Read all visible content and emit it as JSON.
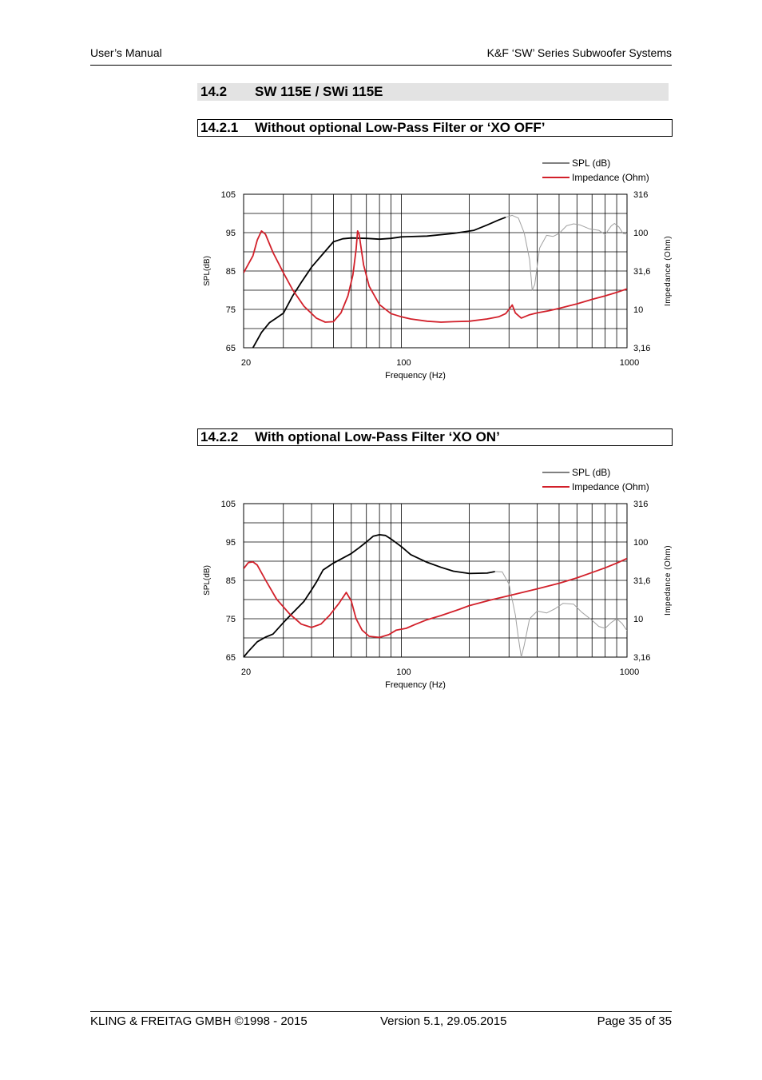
{
  "header": {
    "left": "User’s Manual",
    "right": "K&F ‘SW’ Series Subwoofer Systems"
  },
  "section": {
    "number": "14.2",
    "title": "SW 115E  / SWi 115E"
  },
  "subsections": [
    {
      "number": "14.2.1",
      "title": "Without optional Low-Pass Filter or ‘XO OFF’"
    },
    {
      "number": "14.2.2",
      "title": "With optional Low-Pass Filter ‘XO ON’"
    }
  ],
  "colors": {
    "spl": "#000000",
    "spl_extended": "#a0a0a0",
    "impedance": "#d2202a",
    "grid": "#000000"
  },
  "chart_data": [
    {
      "type": "line",
      "xscale": "log",
      "xlim": [
        20,
        1000
      ],
      "x_ticks": [
        "20",
        "100",
        "1000"
      ],
      "xlabel": "Frequency (Hz)",
      "ylabel": "SPL(dB)",
      "ylim": [
        65,
        105
      ],
      "y_ticks": [
        "105",
        "95",
        "85",
        "75",
        "65"
      ],
      "y2label": "Impedance (Ohm)",
      "y2scale": "log",
      "y2lim": [
        3.16,
        316
      ],
      "y2_ticks": [
        "316",
        "100",
        "31,6",
        "10",
        "3,16"
      ],
      "legend": {
        "placement": "top-right",
        "entries": [
          "SPL (dB)",
          "Impedance (Ohm)"
        ]
      },
      "series": [
        {
          "name": "SPL (dB)",
          "color": "#000000",
          "points": [
            [
              22,
              65
            ],
            [
              24,
              69
            ],
            [
              26,
              71.5
            ],
            [
              28,
              72.8
            ],
            [
              30,
              74
            ],
            [
              33,
              78.5
            ],
            [
              36,
              82
            ],
            [
              40,
              86
            ],
            [
              45,
              89.5
            ],
            [
              50,
              92.6
            ],
            [
              55,
              93.4
            ],
            [
              60,
              93.6
            ],
            [
              70,
              93.5
            ],
            [
              80,
              93.3
            ],
            [
              90,
              93.5
            ],
            [
              100,
              93.9
            ],
            [
              130,
              94.1
            ],
            [
              170,
              94.8
            ],
            [
              210,
              95.6
            ],
            [
              240,
              97
            ],
            [
              270,
              98.3
            ],
            [
              290,
              99
            ]
          ]
        },
        {
          "name": "SPL (dB) extended",
          "color": "#a0a0a0",
          "points": [
            [
              290,
              99
            ],
            [
              310,
              99.5
            ],
            [
              330,
              98.8
            ],
            [
              350,
              95
            ],
            [
              370,
              88
            ],
            [
              380,
              80
            ],
            [
              390,
              81.5
            ],
            [
              410,
              91
            ],
            [
              440,
              94.3
            ],
            [
              470,
              94
            ],
            [
              500,
              94.8
            ],
            [
              540,
              96.8
            ],
            [
              580,
              97.3
            ],
            [
              620,
              97
            ],
            [
              680,
              96
            ],
            [
              750,
              95.6
            ],
            [
              800,
              94.5
            ],
            [
              850,
              96.7
            ],
            [
              880,
              97.4
            ],
            [
              920,
              96.5
            ],
            [
              960,
              94.8
            ],
            [
              1000,
              94.6
            ]
          ]
        },
        {
          "name": "Impedance (Ohm)",
          "color": "#d2202a",
          "points": [
            [
              20,
              30
            ],
            [
              22,
              50
            ],
            [
              23,
              80
            ],
            [
              24,
              105
            ],
            [
              25,
              95
            ],
            [
              27,
              55
            ],
            [
              30,
              30
            ],
            [
              33,
              18
            ],
            [
              37,
              11
            ],
            [
              42,
              7.7
            ],
            [
              46,
              6.8
            ],
            [
              50,
              6.9
            ],
            [
              54,
              9
            ],
            [
              58,
              15
            ],
            [
              61,
              28
            ],
            [
              63,
              60
            ],
            [
              64,
              105
            ],
            [
              65,
              95
            ],
            [
              68,
              38
            ],
            [
              72,
              20
            ],
            [
              80,
              11.5
            ],
            [
              90,
              8.8
            ],
            [
              100,
              8
            ],
            [
              110,
              7.5
            ],
            [
              130,
              7
            ],
            [
              150,
              6.8
            ],
            [
              170,
              6.9
            ],
            [
              200,
              7
            ],
            [
              240,
              7.5
            ],
            [
              270,
              8
            ],
            [
              290,
              8.8
            ],
            [
              300,
              10
            ],
            [
              310,
              11.4
            ],
            [
              320,
              9
            ],
            [
              340,
              7.7
            ],
            [
              370,
              8.5
            ],
            [
              400,
              9
            ],
            [
              450,
              9.6
            ],
            [
              500,
              10.3
            ],
            [
              600,
              11.8
            ],
            [
              700,
              13.5
            ],
            [
              800,
              15
            ],
            [
              900,
              16.6
            ],
            [
              1000,
              18.5
            ]
          ]
        }
      ]
    },
    {
      "type": "line",
      "xscale": "log",
      "xlim": [
        20,
        1000
      ],
      "x_ticks": [
        "20",
        "100",
        "1000"
      ],
      "xlabel": "Frequency (Hz)",
      "ylabel": "SPL(dB)",
      "ylim": [
        65,
        105
      ],
      "y_ticks": [
        "105",
        "95",
        "85",
        "75",
        "65"
      ],
      "y2label": "Impedance (Ohm)",
      "y2scale": "log",
      "y2lim": [
        3.16,
        316
      ],
      "y2_ticks": [
        "316",
        "100",
        "31,6",
        "10",
        "3,16"
      ],
      "legend": {
        "placement": "top-right",
        "entries": [
          "SPL (dB)",
          "Impedance (Ohm)"
        ]
      },
      "series": [
        {
          "name": "SPL (dB)",
          "color": "#000000",
          "points": [
            [
              20,
              65
            ],
            [
              21,
              66.5
            ],
            [
              23,
              69
            ],
            [
              25,
              70.2
            ],
            [
              27,
              71
            ],
            [
              30,
              74
            ],
            [
              33,
              76.5
            ],
            [
              37,
              79.5
            ],
            [
              40,
              82.5
            ],
            [
              42,
              84.5
            ],
            [
              45,
              87.7
            ],
            [
              50,
              89.5
            ],
            [
              55,
              90.8
            ],
            [
              60,
              92
            ],
            [
              65,
              93.5
            ],
            [
              70,
              95
            ],
            [
              75,
              96.5
            ],
            [
              80,
              96.9
            ],
            [
              85,
              96.7
            ],
            [
              90,
              95.8
            ],
            [
              100,
              93.8
            ],
            [
              110,
              91.7
            ],
            [
              130,
              89.7
            ],
            [
              150,
              88.4
            ],
            [
              170,
              87.4
            ],
            [
              200,
              86.8
            ],
            [
              240,
              86.9
            ],
            [
              260,
              87.3
            ]
          ]
        },
        {
          "name": "SPL (dB) extended",
          "color": "#a0a0a0",
          "points": [
            [
              260,
              87.3
            ],
            [
              280,
              87.2
            ],
            [
              300,
              84
            ],
            [
              320,
              76
            ],
            [
              330,
              70
            ],
            [
              340,
              65
            ],
            [
              350,
              68
            ],
            [
              370,
              75
            ],
            [
              400,
              77
            ],
            [
              440,
              76.5
            ],
            [
              480,
              77.6
            ],
            [
              520,
              79
            ],
            [
              580,
              78.8
            ],
            [
              630,
              76.7
            ],
            [
              700,
              74.6
            ],
            [
              750,
              73
            ],
            [
              800,
              72.5
            ],
            [
              850,
              74
            ],
            [
              900,
              75
            ],
            [
              950,
              73.8
            ],
            [
              1000,
              71.9
            ]
          ]
        },
        {
          "name": "Impedance (Ohm)",
          "color": "#d2202a",
          "points": [
            [
              20,
              45
            ],
            [
              21,
              54
            ],
            [
              22,
              55
            ],
            [
              23,
              50
            ],
            [
              25,
              32
            ],
            [
              28,
              18
            ],
            [
              32,
              11.5
            ],
            [
              36,
              8.5
            ],
            [
              40,
              7.7
            ],
            [
              44,
              8.5
            ],
            [
              48,
              11
            ],
            [
              53,
              16
            ],
            [
              57,
              22
            ],
            [
              60,
              17
            ],
            [
              63,
              10
            ],
            [
              67,
              7.1
            ],
            [
              72,
              5.9
            ],
            [
              80,
              5.7
            ],
            [
              88,
              6.2
            ],
            [
              95,
              7.1
            ],
            [
              105,
              7.5
            ],
            [
              115,
              8.4
            ],
            [
              130,
              9.7
            ],
            [
              150,
              11
            ],
            [
              180,
              13.2
            ],
            [
              200,
              14.8
            ],
            [
              250,
              17.6
            ],
            [
              300,
              20
            ],
            [
              400,
              24.5
            ],
            [
              500,
              29
            ],
            [
              600,
              34
            ],
            [
              700,
              40
            ],
            [
              800,
              46
            ],
            [
              900,
              53
            ],
            [
              1000,
              61
            ]
          ]
        }
      ]
    }
  ],
  "footer": {
    "left": "KLING & FREITAG GMBH ©1998 - 2015",
    "center": "Version 5.1, 29.05.2015",
    "right": "Page 35 of 35"
  }
}
